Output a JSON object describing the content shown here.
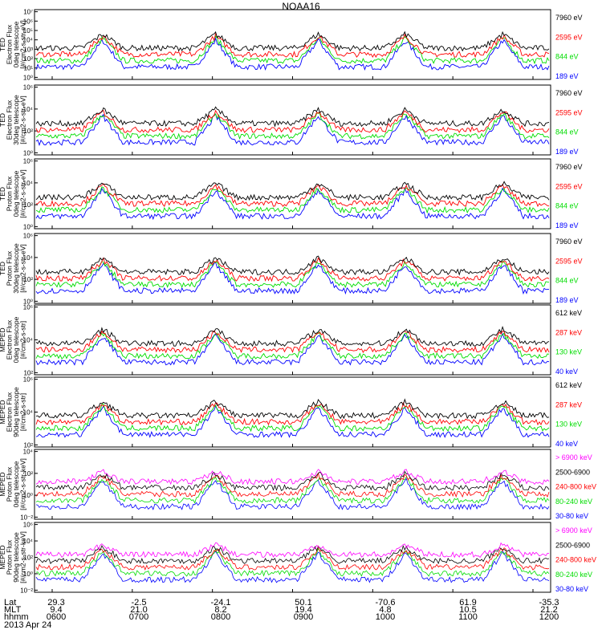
{
  "title": "NOAA16",
  "footer": {
    "row_labels": [
      "Lat",
      "MLT",
      "hhmm"
    ],
    "date": "2013 Apr 24",
    "columns": [
      {
        "lat": "29.3",
        "mlt": "9.4",
        "hhmm": "0600"
      },
      {
        "lat": "-2.5",
        "mlt": "21.0",
        "hhmm": "0700"
      },
      {
        "lat": "-24.1",
        "mlt": "8.2",
        "hhmm": "0800"
      },
      {
        "lat": "50.1",
        "mlt": "19.4",
        "hhmm": "0900"
      },
      {
        "lat": "-70.6",
        "mlt": "4.8",
        "hhmm": "1000"
      },
      {
        "lat": "61.9",
        "mlt": "10.5",
        "hhmm": "1100"
      },
      {
        "lat": "-35.3",
        "mlt": "21.2",
        "hhmm": "1200"
      }
    ]
  },
  "colors": {
    "black": "#000000",
    "red": "#ff0000",
    "green": "#00dd00",
    "blue": "#0000ff",
    "magenta": "#ff00ff"
  },
  "chart_data": [
    {
      "type": "line",
      "id": "ted-e-0",
      "ylabel": [
        "TED",
        "Electron Flux",
        "0deg telescope",
        "[#/cm2-s-str-eV]"
      ],
      "yticks": [
        "10⁰",
        "10¹",
        "10²",
        "10³",
        "10⁴",
        "10⁵",
        "10⁶",
        "10⁷"
      ],
      "ylim": [
        0,
        7
      ],
      "series": [
        {
          "name": "7960 eV",
          "color": "#000000"
        },
        {
          "name": "2595 eV",
          "color": "#ff0000"
        },
        {
          "name": "844 eV",
          "color": "#00dd00"
        },
        {
          "name": "189 eV",
          "color": "#0000ff"
        }
      ]
    },
    {
      "type": "line",
      "id": "ted-e-30",
      "ylabel": [
        "TED",
        "Electron Flux",
        "30deg telescope",
        "[#/cm2-s-str-eV]"
      ],
      "yticks": [
        "10⁰",
        "10²",
        "10⁴",
        "10⁶"
      ],
      "ylim": [
        0,
        7
      ],
      "series": [
        {
          "name": "7960 eV",
          "color": "#000000"
        },
        {
          "name": "2595 eV",
          "color": "#ff0000"
        },
        {
          "name": "844 eV",
          "color": "#00dd00"
        },
        {
          "name": "189 eV",
          "color": "#0000ff"
        }
      ]
    },
    {
      "type": "line",
      "id": "ted-p-0",
      "ylabel": [
        "TED",
        "Proton Flux",
        "0deg telescope",
        "[#/cm2-s-str-eV]"
      ],
      "yticks": [
        "10⁰",
        "10²",
        "10⁴",
        "10⁶"
      ],
      "ylim": [
        0,
        7
      ],
      "series": [
        {
          "name": "7960 eV",
          "color": "#000000"
        },
        {
          "name": "2595 eV",
          "color": "#ff0000"
        },
        {
          "name": "844 eV",
          "color": "#00dd00"
        },
        {
          "name": "189 eV",
          "color": "#0000ff"
        }
      ]
    },
    {
      "type": "line",
      "id": "ted-p-30",
      "ylabel": [
        "TED",
        "Proton Flux",
        "30deg telescope",
        "[#/cm2-s-str-eV]"
      ],
      "yticks": [
        "10⁰",
        "10²",
        "10⁴",
        "10⁶"
      ],
      "ylim": [
        0,
        7
      ],
      "series": [
        {
          "name": "7960 eV",
          "color": "#000000"
        },
        {
          "name": "2595 eV",
          "color": "#ff0000"
        },
        {
          "name": "844 eV",
          "color": "#00dd00"
        },
        {
          "name": "189 eV",
          "color": "#0000ff"
        }
      ]
    },
    {
      "type": "line",
      "id": "meped-e-0",
      "ylabel": [
        "MEPED",
        "Electron Flux",
        "0deg telescope",
        "[#/cm2-s-str]"
      ],
      "yticks": [
        "10²",
        "10⁴",
        "10⁶"
      ],
      "ylim": [
        1.5,
        7
      ],
      "series": [
        {
          "name": "612 keV",
          "color": "#000000"
        },
        {
          "name": "287 keV",
          "color": "#ff0000"
        },
        {
          "name": "130 keV",
          "color": "#00dd00"
        },
        {
          "name": "40 keV",
          "color": "#0000ff"
        }
      ]
    },
    {
      "type": "line",
      "id": "meped-e-90",
      "ylabel": [
        "MEPED",
        "Electron Flux",
        "90deg telescope",
        "[#/cm2-s-str]"
      ],
      "yticks": [
        "10²",
        "10⁴",
        "10⁶"
      ],
      "ylim": [
        1.5,
        7
      ],
      "series": [
        {
          "name": "612 keV",
          "color": "#000000"
        },
        {
          "name": "287 keV",
          "color": "#ff0000"
        },
        {
          "name": "130 keV",
          "color": "#00dd00"
        },
        {
          "name": "40 keV",
          "color": "#0000ff"
        }
      ]
    },
    {
      "type": "line",
      "id": "meped-p-0",
      "ylabel": [
        "MEPED",
        "Proton Flux",
        "0deg telescope",
        "[#/cm2-s-str-keV]"
      ],
      "yticks": [
        "10⁻²",
        "10⁰",
        "10²",
        "10⁴"
      ],
      "ylim": [
        -3,
        5
      ],
      "series": [
        {
          "name": "> 6900 keV",
          "color": "#ff00ff"
        },
        {
          "name": "2500-6900",
          "color": "#000000"
        },
        {
          "name": "240-800 keV",
          "color": "#ff0000"
        },
        {
          "name": "80-240 keV",
          "color": "#00dd00"
        },
        {
          "name": "30-80 keV",
          "color": "#0000ff"
        }
      ]
    },
    {
      "type": "line",
      "id": "meped-p-90",
      "ylabel": [
        "MEPED",
        "Proton Flux",
        "90deg telescope",
        "[#/cm2-s-str-keV]"
      ],
      "yticks": [
        "10⁻²",
        "10⁰",
        "10²",
        "10⁴",
        "10⁶"
      ],
      "ylim": [
        -3,
        7
      ],
      "series": [
        {
          "name": "> 6900 keV",
          "color": "#ff00ff"
        },
        {
          "name": "2500-6900",
          "color": "#000000"
        },
        {
          "name": "240-800 keV",
          "color": "#ff0000"
        },
        {
          "name": "80-240 keV",
          "color": "#00dd00"
        },
        {
          "name": "30-80 keV",
          "color": "#0000ff"
        }
      ]
    }
  ]
}
